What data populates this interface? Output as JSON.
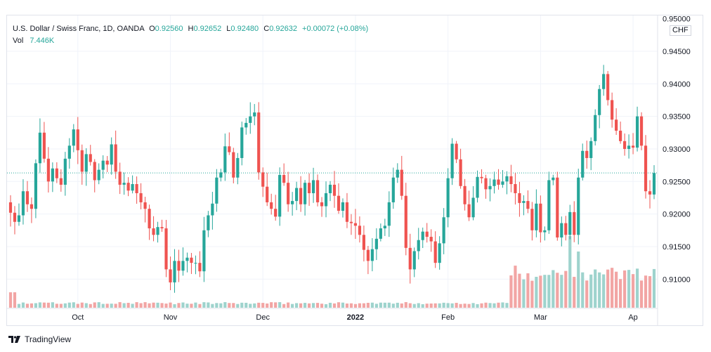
{
  "legend": {
    "symbol": "U.S. Dollar / Swiss Franc, 1D, OANDA",
    "open_label": "O",
    "open": "0.92560",
    "high_label": "H",
    "high": "0.92652",
    "low_label": "L",
    "low": "0.92480",
    "close_label": "C",
    "close": "0.92632",
    "change": "+0.00072 (+0.08%)",
    "vol_label": "Vol",
    "vol": "7.446K"
  },
  "price_axis": {
    "currency": "CHF",
    "ticks": [
      "0.95000",
      "0.94500",
      "0.94000",
      "0.93500",
      "0.93000",
      "0.92500",
      "0.92000",
      "0.91500",
      "0.91000"
    ]
  },
  "time_axis": {
    "ticks": [
      "Oct",
      "Nov",
      "Dec",
      "2022",
      "Feb",
      "Mar",
      "Ap"
    ]
  },
  "brand": {
    "name": "TradingView"
  },
  "colors": {
    "up": "#26a69a",
    "down": "#ef5350",
    "vol_up": "#9ed3cd",
    "vol_down": "#f2a5a4",
    "grid": "#f0f3fa"
  },
  "chart_data": {
    "type": "candlestick",
    "title": "U.S. Dollar / Swiss Franc, 1D, OANDA",
    "ylim": [
      0.9055,
      0.9505
    ],
    "y_ticks": [
      0.95,
      0.945,
      0.94,
      0.935,
      0.93,
      0.925,
      0.92,
      0.915,
      0.91
    ],
    "last_close": 0.92632,
    "x_labels": [
      "Oct",
      "Nov",
      "Dec",
      "2022",
      "Feb",
      "Mar",
      "Ap"
    ],
    "x_label_index": [
      16,
      38,
      60,
      82,
      104,
      126,
      148
    ],
    "closes": [
      0.9202,
      0.9188,
      0.9198,
      0.9235,
      0.9215,
      0.9208,
      0.9278,
      0.9325,
      0.9285,
      0.925,
      0.927,
      0.9255,
      0.9245,
      0.9285,
      0.9305,
      0.933,
      0.9298,
      0.9265,
      0.9292,
      0.928,
      0.9252,
      0.9268,
      0.9282,
      0.9276,
      0.9307,
      0.9265,
      0.9245,
      0.9248,
      0.9236,
      0.9246,
      0.9232,
      0.9218,
      0.9208,
      0.9178,
      0.9168,
      0.918,
      0.9178,
      0.9115,
      0.9095,
      0.9128,
      0.9113,
      0.9128,
      0.9133,
      0.9125,
      0.9125,
      0.9112,
      0.9175,
      0.9198,
      0.9216,
      0.9256,
      0.9264,
      0.9304,
      0.9295,
      0.9256,
      0.9286,
      0.9333,
      0.934,
      0.935,
      0.9356,
      0.9264,
      0.9242,
      0.9218,
      0.9208,
      0.9196,
      0.926,
      0.9248,
      0.9215,
      0.922,
      0.924,
      0.9215,
      0.9248,
      0.9232,
      0.9252,
      0.9218,
      0.9212,
      0.9232,
      0.9245,
      0.9228,
      0.9205,
      0.9218,
      0.9188,
      0.9186,
      0.9182,
      0.9168,
      0.9145,
      0.9128,
      0.9146,
      0.9162,
      0.9178,
      0.9182,
      0.9218,
      0.9256,
      0.9268,
      0.9228,
      0.9148,
      0.9115,
      0.9143,
      0.916,
      0.9173,
      0.9165,
      0.9158,
      0.9125,
      0.9155,
      0.9195,
      0.9255,
      0.9308,
      0.9284,
      0.9243,
      0.9215,
      0.9195,
      0.9225,
      0.9257,
      0.9255,
      0.9238,
      0.9243,
      0.9253,
      0.9245,
      0.925,
      0.9258,
      0.9246,
      0.9232,
      0.9217,
      0.922,
      0.9208,
      0.9175,
      0.9216,
      0.9172,
      0.9175,
      0.9252,
      0.9256,
      0.9164,
      0.9186,
      0.9168,
      0.9203,
      0.9168,
      0.9256,
      0.9297,
      0.9286,
      0.9312,
      0.9352,
      0.9392,
      0.9415,
      0.9375,
      0.9345,
      0.9328,
      0.9312,
      0.93,
      0.9305,
      0.9302,
      0.935,
      0.9305,
      0.9235,
      0.923,
      0.9263
    ]
  }
}
